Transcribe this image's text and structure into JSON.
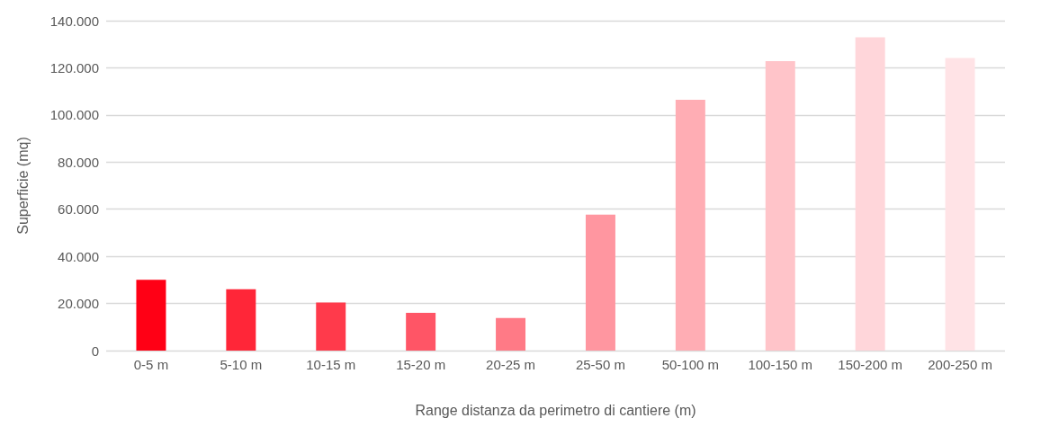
{
  "chart_data": {
    "type": "bar",
    "xlabel": "Range distanza da perimetro di cantiere (m)",
    "ylabel": "Superficie (mq)",
    "categories": [
      "0-5 m",
      "5-10 m",
      "10-15 m",
      "15-20 m",
      "20-25 m",
      "25-50 m",
      "50-100 m",
      "100-150 m",
      "150-200 m",
      "200-250 m"
    ],
    "values": [
      30000,
      26000,
      20400,
      16000,
      13800,
      57700,
      106400,
      122800,
      132900,
      124200
    ],
    "colors": [
      "#ff0015",
      "#ff2638",
      "#ff3a4b",
      "#ff5566",
      "#ff7a86",
      "#ff96a0",
      "#ffadb4",
      "#ffc4c9",
      "#ffd6da",
      "#ffe3e6"
    ],
    "ylim": [
      0,
      140000
    ],
    "yticks": [
      {
        "value": 0,
        "label": "0"
      },
      {
        "value": 20000,
        "label": "20.000"
      },
      {
        "value": 40000,
        "label": "40.000"
      },
      {
        "value": 60000,
        "label": "60.000"
      },
      {
        "value": 80000,
        "label": "80.000"
      },
      {
        "value": 100000,
        "label": "100.000"
      },
      {
        "value": 120000,
        "label": "120.000"
      },
      {
        "value": 140000,
        "label": "140.000"
      }
    ],
    "grid": "y"
  }
}
